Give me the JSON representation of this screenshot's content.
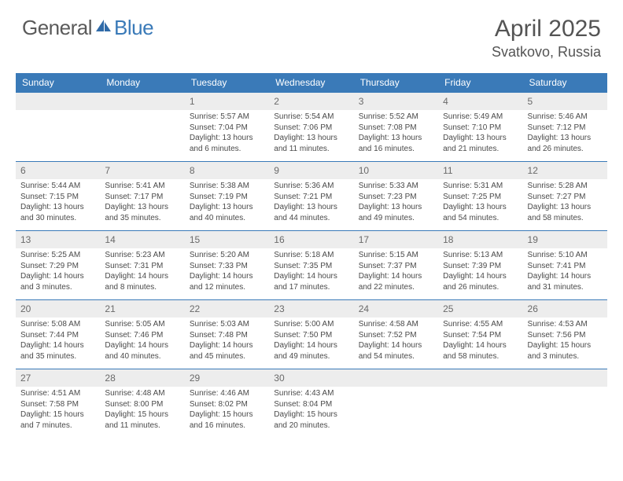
{
  "logo": {
    "general": "General",
    "blue": "Blue"
  },
  "title": "April 2025",
  "location": "Svatkovo, Russia",
  "colors": {
    "header_bg": "#3a7ab8",
    "header_text": "#ffffff",
    "alt_row_bg": "#ededed",
    "rule": "#3a7ab8",
    "body_text": "#4a4a4a"
  },
  "day_headers": [
    "Sunday",
    "Monday",
    "Tuesday",
    "Wednesday",
    "Thursday",
    "Friday",
    "Saturday"
  ],
  "weeks": [
    [
      null,
      null,
      {
        "n": "1",
        "sr": "Sunrise: 5:57 AM",
        "ss": "Sunset: 7:04 PM",
        "d1": "Daylight: 13 hours",
        "d2": "and 6 minutes."
      },
      {
        "n": "2",
        "sr": "Sunrise: 5:54 AM",
        "ss": "Sunset: 7:06 PM",
        "d1": "Daylight: 13 hours",
        "d2": "and 11 minutes."
      },
      {
        "n": "3",
        "sr": "Sunrise: 5:52 AM",
        "ss": "Sunset: 7:08 PM",
        "d1": "Daylight: 13 hours",
        "d2": "and 16 minutes."
      },
      {
        "n": "4",
        "sr": "Sunrise: 5:49 AM",
        "ss": "Sunset: 7:10 PM",
        "d1": "Daylight: 13 hours",
        "d2": "and 21 minutes."
      },
      {
        "n": "5",
        "sr": "Sunrise: 5:46 AM",
        "ss": "Sunset: 7:12 PM",
        "d1": "Daylight: 13 hours",
        "d2": "and 26 minutes."
      }
    ],
    [
      {
        "n": "6",
        "sr": "Sunrise: 5:44 AM",
        "ss": "Sunset: 7:15 PM",
        "d1": "Daylight: 13 hours",
        "d2": "and 30 minutes."
      },
      {
        "n": "7",
        "sr": "Sunrise: 5:41 AM",
        "ss": "Sunset: 7:17 PM",
        "d1": "Daylight: 13 hours",
        "d2": "and 35 minutes."
      },
      {
        "n": "8",
        "sr": "Sunrise: 5:38 AM",
        "ss": "Sunset: 7:19 PM",
        "d1": "Daylight: 13 hours",
        "d2": "and 40 minutes."
      },
      {
        "n": "9",
        "sr": "Sunrise: 5:36 AM",
        "ss": "Sunset: 7:21 PM",
        "d1": "Daylight: 13 hours",
        "d2": "and 44 minutes."
      },
      {
        "n": "10",
        "sr": "Sunrise: 5:33 AM",
        "ss": "Sunset: 7:23 PM",
        "d1": "Daylight: 13 hours",
        "d2": "and 49 minutes."
      },
      {
        "n": "11",
        "sr": "Sunrise: 5:31 AM",
        "ss": "Sunset: 7:25 PM",
        "d1": "Daylight: 13 hours",
        "d2": "and 54 minutes."
      },
      {
        "n": "12",
        "sr": "Sunrise: 5:28 AM",
        "ss": "Sunset: 7:27 PM",
        "d1": "Daylight: 13 hours",
        "d2": "and 58 minutes."
      }
    ],
    [
      {
        "n": "13",
        "sr": "Sunrise: 5:25 AM",
        "ss": "Sunset: 7:29 PM",
        "d1": "Daylight: 14 hours",
        "d2": "and 3 minutes."
      },
      {
        "n": "14",
        "sr": "Sunrise: 5:23 AM",
        "ss": "Sunset: 7:31 PM",
        "d1": "Daylight: 14 hours",
        "d2": "and 8 minutes."
      },
      {
        "n": "15",
        "sr": "Sunrise: 5:20 AM",
        "ss": "Sunset: 7:33 PM",
        "d1": "Daylight: 14 hours",
        "d2": "and 12 minutes."
      },
      {
        "n": "16",
        "sr": "Sunrise: 5:18 AM",
        "ss": "Sunset: 7:35 PM",
        "d1": "Daylight: 14 hours",
        "d2": "and 17 minutes."
      },
      {
        "n": "17",
        "sr": "Sunrise: 5:15 AM",
        "ss": "Sunset: 7:37 PM",
        "d1": "Daylight: 14 hours",
        "d2": "and 22 minutes."
      },
      {
        "n": "18",
        "sr": "Sunrise: 5:13 AM",
        "ss": "Sunset: 7:39 PM",
        "d1": "Daylight: 14 hours",
        "d2": "and 26 minutes."
      },
      {
        "n": "19",
        "sr": "Sunrise: 5:10 AM",
        "ss": "Sunset: 7:41 PM",
        "d1": "Daylight: 14 hours",
        "d2": "and 31 minutes."
      }
    ],
    [
      {
        "n": "20",
        "sr": "Sunrise: 5:08 AM",
        "ss": "Sunset: 7:44 PM",
        "d1": "Daylight: 14 hours",
        "d2": "and 35 minutes."
      },
      {
        "n": "21",
        "sr": "Sunrise: 5:05 AM",
        "ss": "Sunset: 7:46 PM",
        "d1": "Daylight: 14 hours",
        "d2": "and 40 minutes."
      },
      {
        "n": "22",
        "sr": "Sunrise: 5:03 AM",
        "ss": "Sunset: 7:48 PM",
        "d1": "Daylight: 14 hours",
        "d2": "and 45 minutes."
      },
      {
        "n": "23",
        "sr": "Sunrise: 5:00 AM",
        "ss": "Sunset: 7:50 PM",
        "d1": "Daylight: 14 hours",
        "d2": "and 49 minutes."
      },
      {
        "n": "24",
        "sr": "Sunrise: 4:58 AM",
        "ss": "Sunset: 7:52 PM",
        "d1": "Daylight: 14 hours",
        "d2": "and 54 minutes."
      },
      {
        "n": "25",
        "sr": "Sunrise: 4:55 AM",
        "ss": "Sunset: 7:54 PM",
        "d1": "Daylight: 14 hours",
        "d2": "and 58 minutes."
      },
      {
        "n": "26",
        "sr": "Sunrise: 4:53 AM",
        "ss": "Sunset: 7:56 PM",
        "d1": "Daylight: 15 hours",
        "d2": "and 3 minutes."
      }
    ],
    [
      {
        "n": "27",
        "sr": "Sunrise: 4:51 AM",
        "ss": "Sunset: 7:58 PM",
        "d1": "Daylight: 15 hours",
        "d2": "and 7 minutes."
      },
      {
        "n": "28",
        "sr": "Sunrise: 4:48 AM",
        "ss": "Sunset: 8:00 PM",
        "d1": "Daylight: 15 hours",
        "d2": "and 11 minutes."
      },
      {
        "n": "29",
        "sr": "Sunrise: 4:46 AM",
        "ss": "Sunset: 8:02 PM",
        "d1": "Daylight: 15 hours",
        "d2": "and 16 minutes."
      },
      {
        "n": "30",
        "sr": "Sunrise: 4:43 AM",
        "ss": "Sunset: 8:04 PM",
        "d1": "Daylight: 15 hours",
        "d2": "and 20 minutes."
      },
      null,
      null,
      null
    ]
  ]
}
